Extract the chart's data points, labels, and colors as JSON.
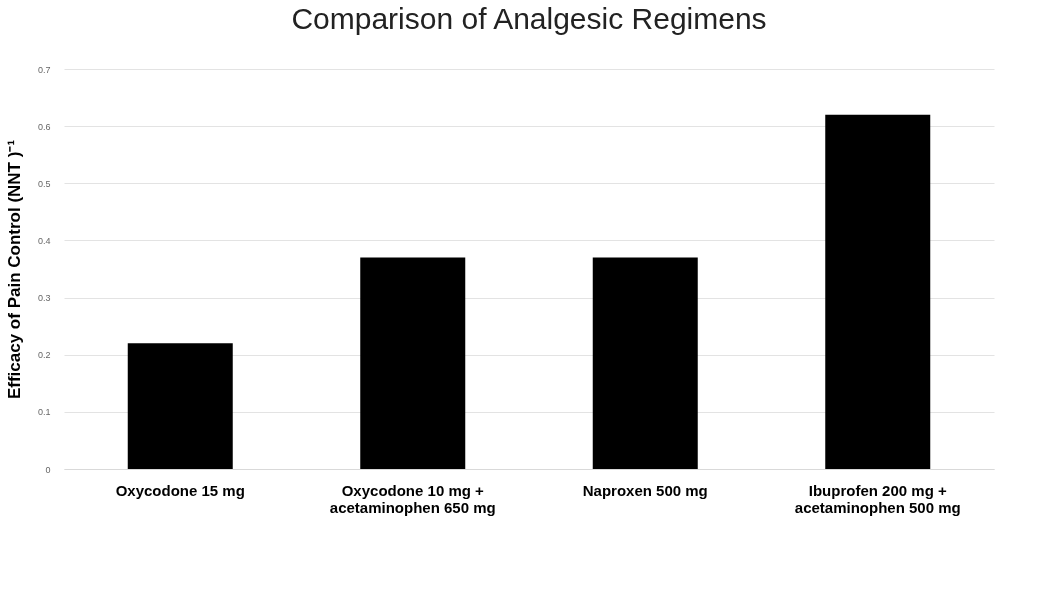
{
  "chart_data": {
    "type": "bar",
    "title": "Comparison of Analgesic Regimens",
    "ylabel": "Efficacy of Pain Control (NNT )⁻¹",
    "categories": [
      "Oxycodone 15 mg",
      "Oxycodone 10 mg + acetaminophen 650 mg",
      "Naproxen 500 mg",
      "Ibuprofen 200 mg + acetaminophen 500 mg"
    ],
    "values": [
      0.22,
      0.37,
      0.37,
      0.62
    ],
    "color": "#000000",
    "ylim": [
      0,
      0.7
    ],
    "yticks": [
      0,
      0.1,
      0.2,
      0.3,
      0.4,
      0.5,
      0.6,
      0.7
    ],
    "grid": "y"
  }
}
